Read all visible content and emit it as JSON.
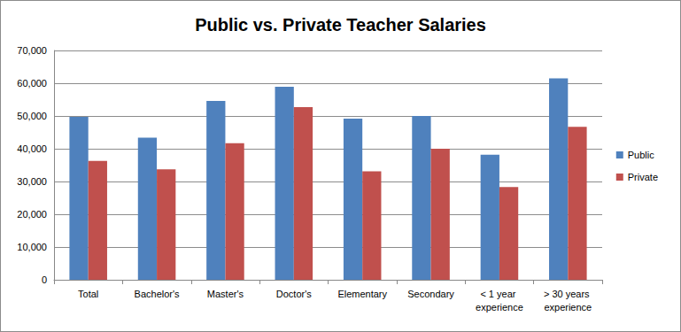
{
  "chart_data": {
    "type": "bar",
    "title": "Public vs. Private Teacher Salaries",
    "categories": [
      "Total",
      "Bachelor's",
      "Master's",
      "Doctor's",
      "Elementary",
      "Secondary",
      "< 1 year experience",
      "> 30 years experience"
    ],
    "series": [
      {
        "name": "Public",
        "color": "#4f81bd",
        "values": [
          49700,
          43400,
          54600,
          58900,
          49200,
          50000,
          38200,
          61500
        ]
      },
      {
        "name": "Private",
        "color": "#c0504d",
        "values": [
          36300,
          33700,
          41700,
          52700,
          33100,
          40000,
          28300,
          46700
        ]
      }
    ],
    "ylim": [
      0,
      70000
    ],
    "yticks": [
      0,
      {
        "value": 10000,
        "label": "10,000"
      },
      {
        "value": 20000,
        "label": "20,000"
      },
      {
        "value": 30000,
        "label": "30,000"
      },
      {
        "value": 40000,
        "label": "40,000"
      },
      {
        "value": 50000,
        "label": "50,000"
      },
      {
        "value": 60000,
        "label": "60,000"
      },
      {
        "value": 70000,
        "label": "70,000"
      }
    ],
    "grid": true,
    "legend": "right"
  }
}
